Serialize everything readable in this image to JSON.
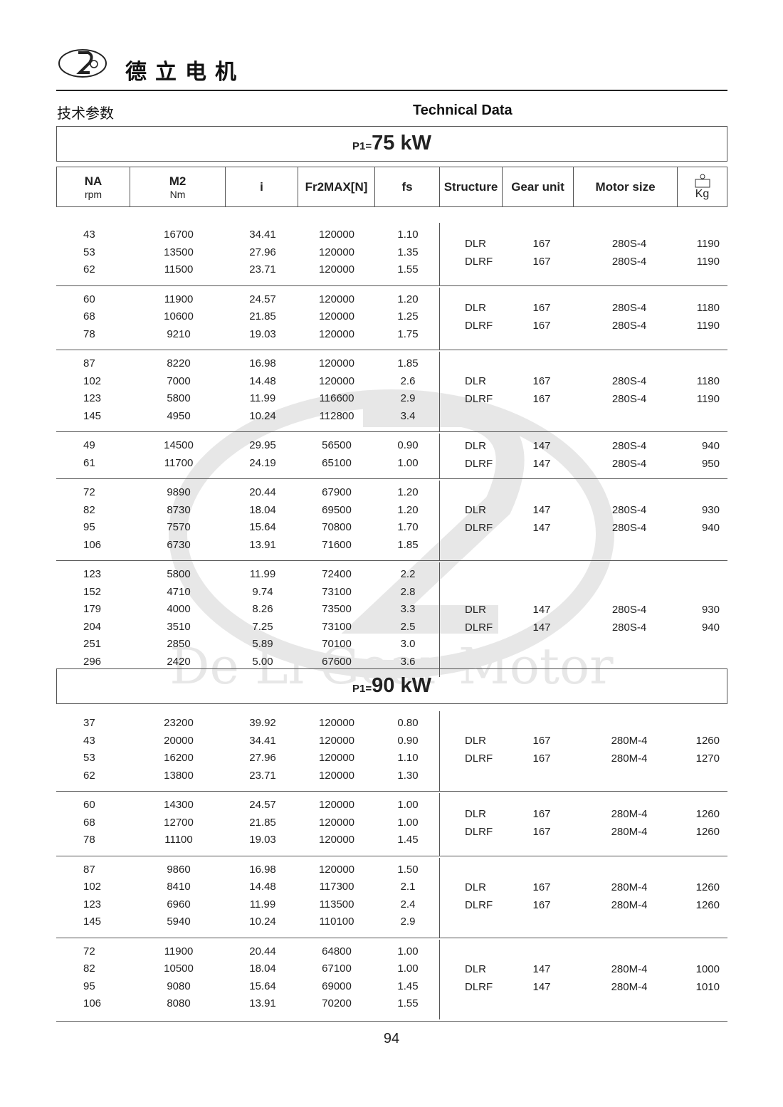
{
  "header": {
    "brand_cn": "德立电机",
    "logo_text": "De Li Gear Motor",
    "title_cn": "技术参数",
    "title_en": "Technical Data"
  },
  "columns": {
    "na": "NA",
    "na_unit": "rpm",
    "m2": "M2",
    "m2_unit": "Nm",
    "i": "i",
    "fr": "Fr2MAX[N]",
    "fs": "fs",
    "structure": "Structure",
    "gear_unit": "Gear unit",
    "motor_size": "Motor size",
    "kg": "Kg"
  },
  "sections": [
    {
      "power_label": "P1=",
      "power": "75 kW",
      "groups": [
        {
          "rows": [
            [
              "43",
              "16700",
              "34.41",
              "120000",
              "1.10"
            ],
            [
              "53",
              "13500",
              "27.96",
              "120000",
              "1.35"
            ],
            [
              "62",
              "11500",
              "23.71",
              "120000",
              "1.55"
            ]
          ],
          "structures": [
            [
              "DLR",
              "167",
              "280S-4",
              "1190"
            ],
            [
              "DLRF",
              "167",
              "280S-4",
              "1190"
            ]
          ]
        },
        {
          "rows": [
            [
              "60",
              "11900",
              "24.57",
              "120000",
              "1.20"
            ],
            [
              "68",
              "10600",
              "21.85",
              "120000",
              "1.25"
            ],
            [
              "78",
              "9210",
              "19.03",
              "120000",
              "1.75"
            ]
          ],
          "structures": [
            [
              "DLR",
              "167",
              "280S-4",
              "1180"
            ],
            [
              "DLRF",
              "167",
              "280S-4",
              "1190"
            ]
          ]
        },
        {
          "rows": [
            [
              "87",
              "8220",
              "16.98",
              "120000",
              "1.85"
            ],
            [
              "102",
              "7000",
              "14.48",
              "120000",
              "2.6"
            ],
            [
              "123",
              "5800",
              "11.99",
              "116600",
              "2.9"
            ],
            [
              "145",
              "4950",
              "10.24",
              "112800",
              "3.4"
            ]
          ],
          "structures": [
            [
              "DLR",
              "167",
              "280S-4",
              "1180"
            ],
            [
              "DLRF",
              "167",
              "280S-4",
              "1190"
            ]
          ]
        },
        {
          "rows": [
            [
              "49",
              "14500",
              "29.95",
              "56500",
              "0.90"
            ],
            [
              "61",
              "11700",
              "24.19",
              "65100",
              "1.00"
            ]
          ],
          "structures": [
            [
              "DLR",
              "147",
              "280S-4",
              "940"
            ],
            [
              "DLRF",
              "147",
              "280S-4",
              "950"
            ]
          ]
        },
        {
          "rows": [
            [
              "72",
              "9890",
              "20.44",
              "67900",
              "1.20"
            ],
            [
              "82",
              "8730",
              "18.04",
              "69500",
              "1.20"
            ],
            [
              "95",
              "7570",
              "15.64",
              "70800",
              "1.70"
            ],
            [
              "106",
              "6730",
              "13.91",
              "71600",
              "1.85"
            ]
          ],
          "structures": [
            [
              "DLR",
              "147",
              "280S-4",
              "930"
            ],
            [
              "DLRF",
              "147",
              "280S-4",
              "940"
            ]
          ]
        },
        {
          "rows": [
            [
              "123",
              "5800",
              "11.99",
              "72400",
              "2.2"
            ],
            [
              "152",
              "4710",
              "9.74",
              "73100",
              "2.8"
            ],
            [
              "179",
              "4000",
              "8.26",
              "73500",
              "3.3"
            ],
            [
              "204",
              "3510",
              "7.25",
              "73100",
              "2.5"
            ],
            [
              "251",
              "2850",
              "5.89",
              "70100",
              "3.0"
            ],
            [
              "296",
              "2420",
              "5.00",
              "67600",
              "3.6"
            ]
          ],
          "structures": [
            [
              "DLR",
              "147",
              "280S-4",
              "930"
            ],
            [
              "DLRF",
              "147",
              "280S-4",
              "940"
            ]
          ]
        }
      ]
    },
    {
      "power_label": "P1=",
      "power": "90 kW",
      "groups": [
        {
          "rows": [
            [
              "37",
              "23200",
              "39.92",
              "120000",
              "0.80"
            ],
            [
              "43",
              "20000",
              "34.41",
              "120000",
              "0.90"
            ],
            [
              "53",
              "16200",
              "27.96",
              "120000",
              "1.10"
            ],
            [
              "62",
              "13800",
              "23.71",
              "120000",
              "1.30"
            ]
          ],
          "structures": [
            [
              "DLR",
              "167",
              "280M-4",
              "1260"
            ],
            [
              "DLRF",
              "167",
              "280M-4",
              "1270"
            ]
          ]
        },
        {
          "rows": [
            [
              "60",
              "14300",
              "24.57",
              "120000",
              "1.00"
            ],
            [
              "68",
              "12700",
              "21.85",
              "120000",
              "1.00"
            ],
            [
              "78",
              "11100",
              "19.03",
              "120000",
              "1.45"
            ]
          ],
          "structures": [
            [
              "DLR",
              "167",
              "280M-4",
              "1260"
            ],
            [
              "DLRF",
              "167",
              "280M-4",
              "1260"
            ]
          ]
        },
        {
          "rows": [
            [
              "87",
              "9860",
              "16.98",
              "120000",
              "1.50"
            ],
            [
              "102",
              "8410",
              "14.48",
              "117300",
              "2.1"
            ],
            [
              "123",
              "6960",
              "11.99",
              "113500",
              "2.4"
            ],
            [
              "145",
              "5940",
              "10.24",
              "110100",
              "2.9"
            ]
          ],
          "structures": [
            [
              "DLR",
              "167",
              "280M-4",
              "1260"
            ],
            [
              "DLRF",
              "167",
              "280M-4",
              "1260"
            ]
          ]
        },
        {
          "rows": [
            [
              "72",
              "11900",
              "20.44",
              "64800",
              "1.00"
            ],
            [
              "82",
              "10500",
              "18.04",
              "67100",
              "1.00"
            ],
            [
              "95",
              "9080",
              "15.64",
              "69000",
              "1.45"
            ],
            [
              "106",
              "8080",
              "13.91",
              "70200",
              "1.55"
            ]
          ],
          "structures": [
            [
              "DLR",
              "147",
              "280M-4",
              "1000"
            ],
            [
              "DLRF",
              "147",
              "280M-4",
              "1010"
            ]
          ]
        }
      ]
    }
  ],
  "page_number": "94"
}
